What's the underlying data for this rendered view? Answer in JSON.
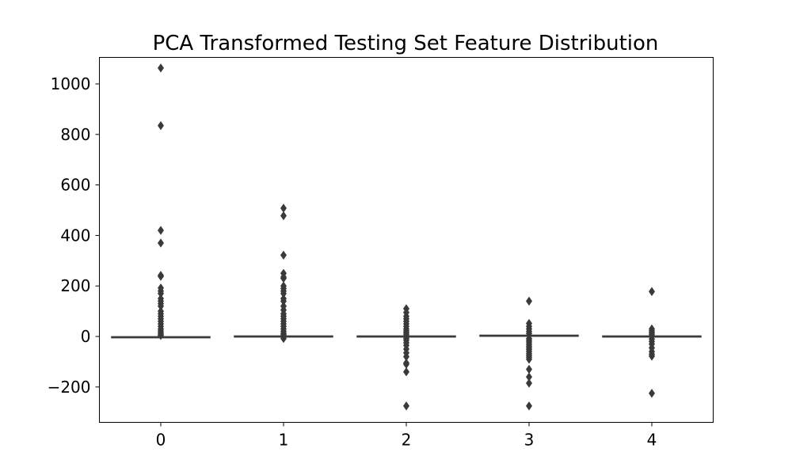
{
  "chart_data": {
    "type": "box",
    "title": "PCA Transformed Testing Set Feature Distribution",
    "xlabel": "",
    "ylabel": "",
    "categories": [
      "0",
      "1",
      "2",
      "3",
      "4"
    ],
    "ylim": [
      -340,
      1105
    ],
    "yticks": [
      -200,
      0,
      200,
      400,
      600,
      800,
      1000
    ],
    "ytick_labels": [
      "−200",
      "0",
      "200",
      "400",
      "600",
      "800",
      "1000"
    ],
    "box_color": "#3a3a3a",
    "grid": false,
    "series": [
      {
        "category": "0",
        "median": -3,
        "q1": -5,
        "q3": -1,
        "whisker_low": -6,
        "whisker_high": 2,
        "outliers": [
          1063,
          835,
          420,
          370,
          242,
          238,
          192,
          180,
          170,
          150,
          140,
          130,
          120,
          100,
          90,
          80,
          70,
          60,
          50,
          40,
          30,
          22,
          15,
          8,
          4
        ]
      },
      {
        "category": "1",
        "median": 0,
        "q1": -2,
        "q3": 2,
        "whisker_low": -4,
        "whisker_high": 4,
        "outliers": [
          508,
          478,
          322,
          250,
          235,
          230,
          200,
          190,
          180,
          170,
          150,
          140,
          120,
          105,
          90,
          80,
          70,
          60,
          50,
          40,
          30,
          20,
          12,
          7,
          -8
        ]
      },
      {
        "category": "2",
        "median": 0,
        "q1": -2,
        "q3": 2,
        "whisker_low": -4,
        "whisker_high": 4,
        "outliers": [
          110,
          95,
          80,
          70,
          60,
          50,
          40,
          30,
          22,
          15,
          8,
          -8,
          -15,
          -25,
          -35,
          -50,
          -65,
          -80,
          -105,
          -110,
          -140,
          -275
        ]
      },
      {
        "category": "3",
        "median": 3,
        "q1": 1,
        "q3": 5,
        "whisker_low": -1,
        "whisker_high": 7,
        "outliers": [
          140,
          52,
          40,
          30,
          20,
          12,
          -8,
          -15,
          -22,
          -30,
          -38,
          -45,
          -52,
          -60,
          -68,
          -75,
          -82,
          -90,
          -130,
          -160,
          -185,
          -275
        ]
      },
      {
        "category": "4",
        "median": 0,
        "q1": -2,
        "q3": 2,
        "whisker_low": -4,
        "whisker_high": 4,
        "outliers": [
          178,
          30,
          22,
          15,
          8,
          -10,
          -20,
          -30,
          -45,
          -60,
          -70,
          -78,
          -225
        ]
      }
    ]
  }
}
